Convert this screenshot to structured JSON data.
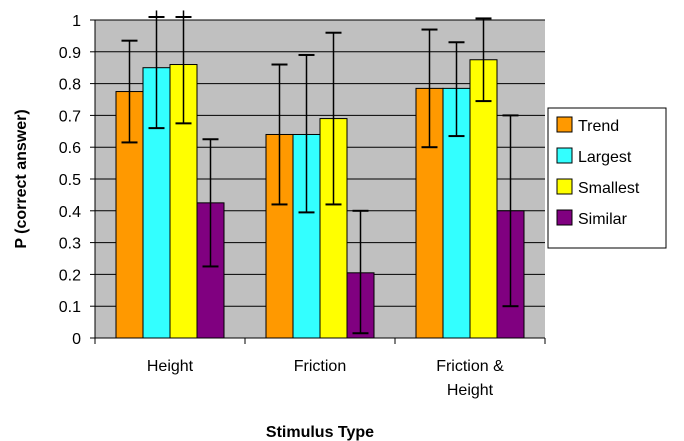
{
  "chart_data": {
    "type": "bar",
    "xlabel": "Stimulus Type",
    "ylabel": "P (correct answer)",
    "ylim": [
      0,
      1
    ],
    "yticks": [
      "0",
      "0.1",
      "0.2",
      "0.3",
      "0.4",
      "0.5",
      "0.6",
      "0.7",
      "0.8",
      "0.9",
      "1"
    ],
    "grid": true,
    "legend_position": "right",
    "categories": [
      [
        "Height"
      ],
      [
        "Friction"
      ],
      [
        "Friction &",
        "Height"
      ]
    ],
    "series": [
      {
        "name": "Trend",
        "color": "#FF9900",
        "values": [
          0.775,
          0.64,
          0.785
        ],
        "err_high": [
          0.935,
          0.86,
          0.97
        ],
        "err_low": [
          0.615,
          0.42,
          0.6
        ]
      },
      {
        "name": "Largest",
        "color": "#33FFFF",
        "values": [
          0.85,
          0.64,
          0.785
        ],
        "err_high": [
          1.03,
          0.89,
          0.93
        ],
        "err_low": [
          0.66,
          0.395,
          0.635
        ]
      },
      {
        "name": "Smallest",
        "color": "#FFFF00",
        "values": [
          0.86,
          0.69,
          0.875
        ],
        "err_high": [
          1.03,
          0.96,
          1.005
        ],
        "err_low": [
          0.675,
          0.42,
          0.745
        ]
      },
      {
        "name": "Similar",
        "color": "#800080",
        "values": [
          0.425,
          0.205,
          0.4
        ],
        "err_high": [
          0.625,
          0.4,
          0.7
        ],
        "err_low": [
          0.225,
          0.015,
          0.1
        ]
      }
    ],
    "plot_background": "#C0C0C0"
  }
}
